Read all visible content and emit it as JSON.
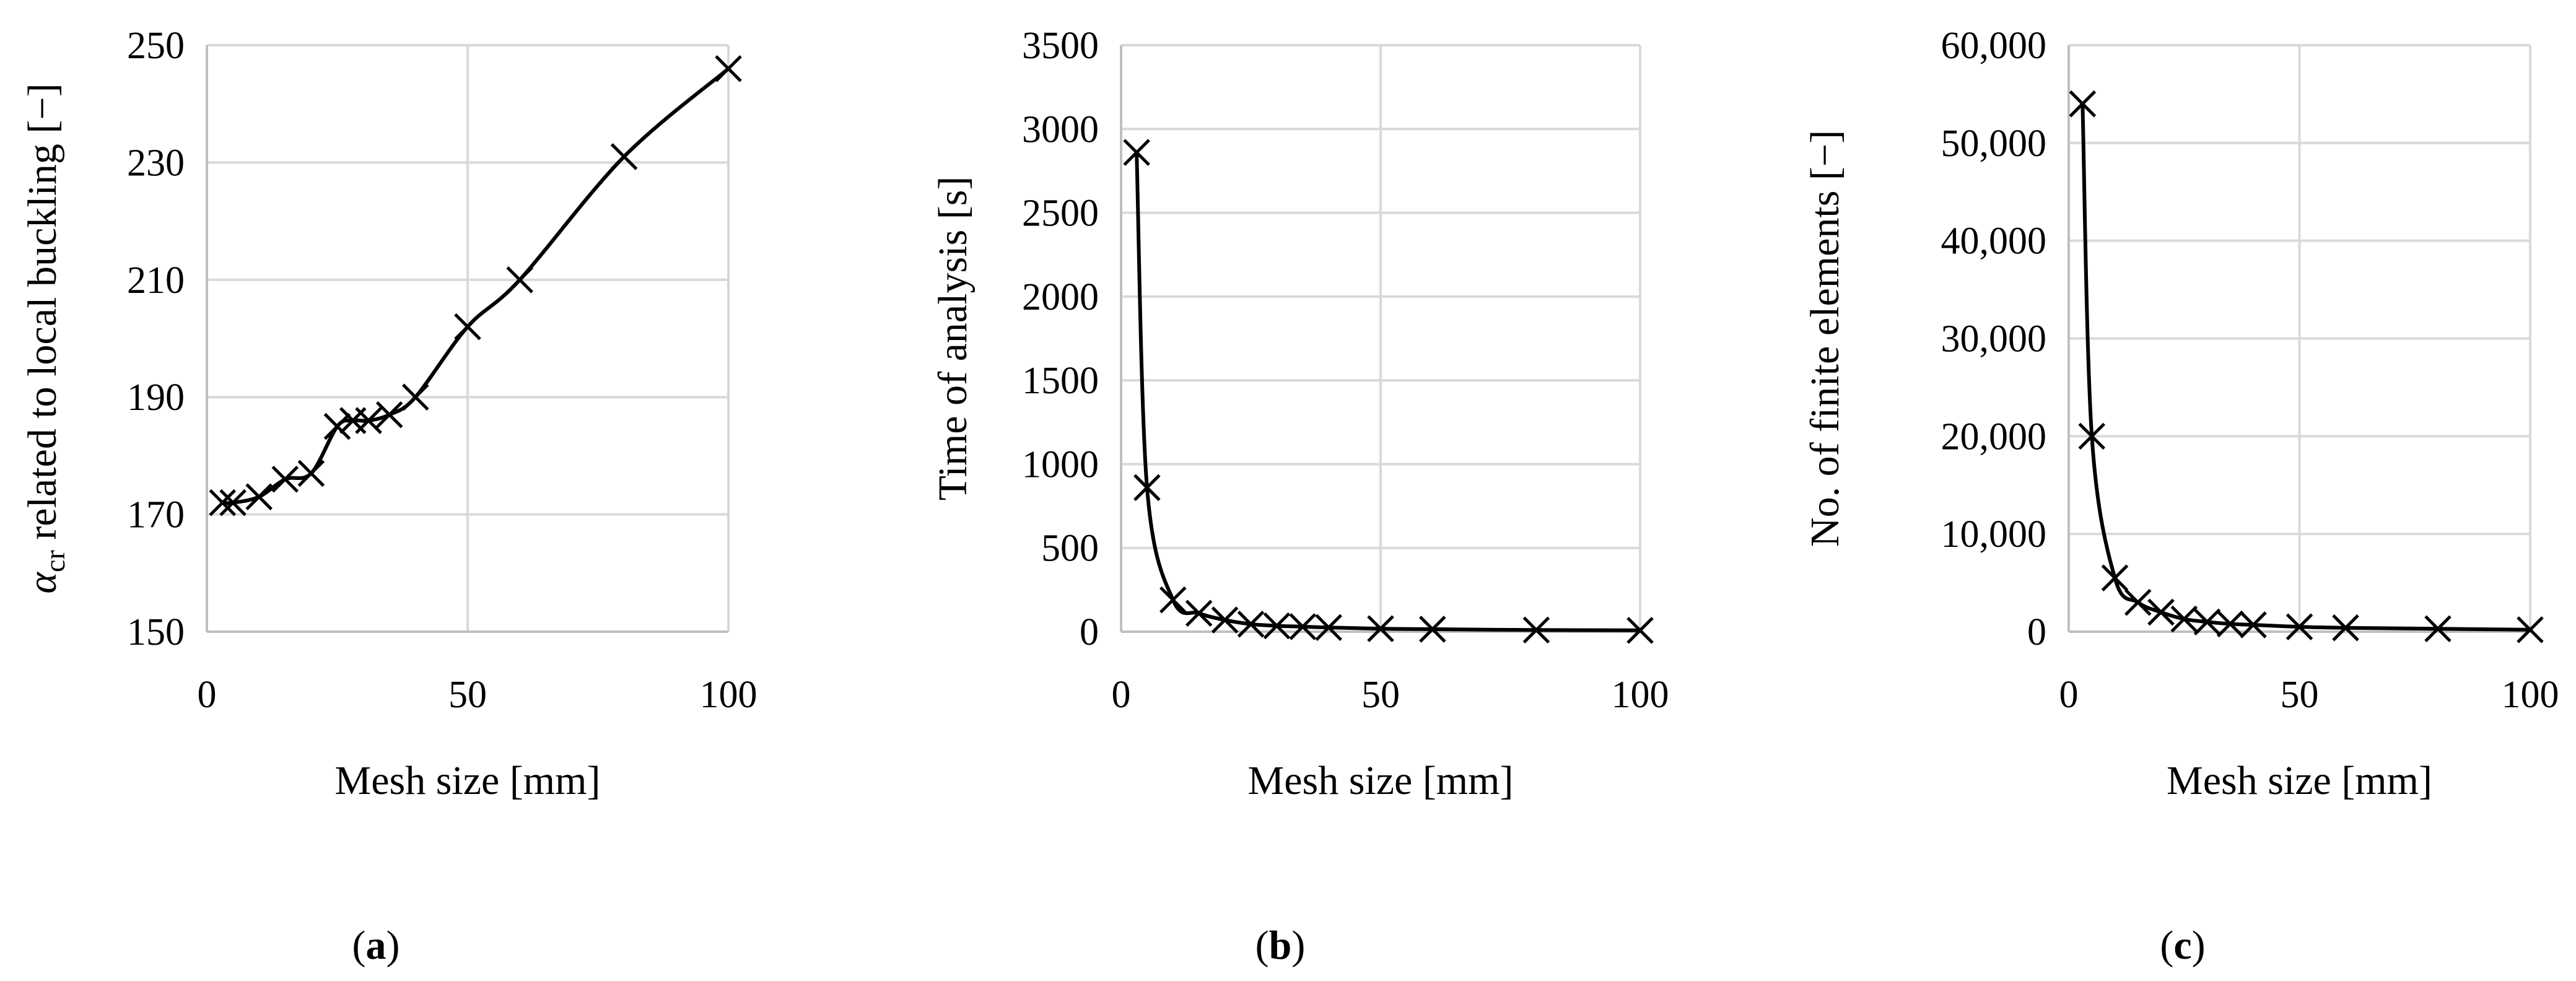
{
  "chart_data": [
    {
      "type": "scatter",
      "panel": "a",
      "caption": "(a)",
      "xlabel": "Mesh size [mm]",
      "ylabel_main": "α",
      "ylabel_sub": "cr",
      "ylabel_rest": " related to local buckling [−]",
      "xlim": [
        0,
        100
      ],
      "ylim": [
        150,
        250
      ],
      "xticks": [
        0,
        50,
        100
      ],
      "yticks": [
        150,
        170,
        190,
        210,
        230,
        250
      ],
      "ytick_labels": [
        "150",
        "170",
        "190",
        "210",
        "230",
        "250"
      ],
      "grid": true,
      "marker": "x",
      "line": "smooth",
      "series": [
        {
          "x": [
            3,
            5,
            10,
            15,
            20,
            25,
            28,
            31,
            35,
            40,
            50,
            60,
            80,
            100
          ],
          "y": [
            172,
            172,
            173,
            176,
            177,
            185,
            186,
            186,
            187,
            190,
            202,
            210,
            231,
            246
          ]
        }
      ]
    },
    {
      "type": "scatter",
      "panel": "b",
      "caption": "(b)",
      "xlabel": "Mesh size [mm]",
      "ylabel": "Time of analysis [s]",
      "xlim": [
        0,
        100
      ],
      "ylim": [
        0,
        3500
      ],
      "xticks": [
        0,
        50,
        100
      ],
      "yticks": [
        0,
        500,
        1000,
        1500,
        2000,
        2500,
        3000,
        3500
      ],
      "ytick_labels": [
        "0",
        "500",
        "1000",
        "1500",
        "2000",
        "2500",
        "3000",
        "3500"
      ],
      "grid": true,
      "marker": "x",
      "line": "smooth",
      "series": [
        {
          "x": [
            3,
            5,
            10,
            15,
            20,
            25,
            30,
            35,
            40,
            50,
            60,
            80,
            100
          ],
          "y": [
            2860,
            860,
            190,
            110,
            70,
            45,
            35,
            30,
            25,
            18,
            15,
            10,
            8
          ]
        }
      ]
    },
    {
      "type": "scatter",
      "panel": "c",
      "caption": "(c)",
      "xlabel": "Mesh size [mm]",
      "ylabel": "No. of finite elements [−]",
      "xlim": [
        0,
        100
      ],
      "ylim": [
        0,
        60000
      ],
      "xticks": [
        0,
        50,
        100
      ],
      "yticks": [
        0,
        10000,
        20000,
        30000,
        40000,
        50000,
        60000
      ],
      "ytick_labels": [
        "0",
        "10,000",
        "20,000",
        "30,000",
        "40,000",
        "50,000",
        "60,000"
      ],
      "grid": true,
      "marker": "x",
      "line": "smooth",
      "series": [
        {
          "x": [
            3,
            5,
            10,
            15,
            20,
            25,
            30,
            35,
            40,
            50,
            60,
            80,
            100
          ],
          "y": [
            54000,
            20000,
            5500,
            3000,
            2000,
            1300,
            1000,
            800,
            700,
            500,
            400,
            300,
            200
          ]
        }
      ]
    }
  ]
}
